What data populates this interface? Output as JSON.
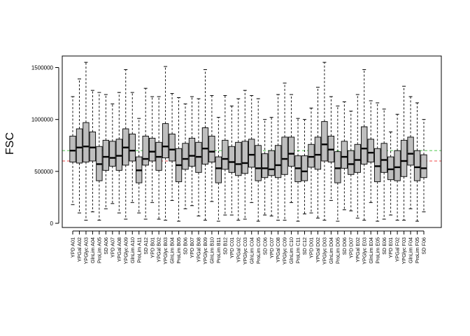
{
  "chart_data": {
    "type": "boxplot",
    "title": "",
    "xlabel": "",
    "ylabel": "FSC",
    "ylim": [
      0,
      1600000
    ],
    "yticks": [
      0,
      500000,
      1000000,
      1500000
    ],
    "ytick_labels": [
      "0",
      "500000",
      "1000000",
      "1500000"
    ],
    "grid": false,
    "box_color": "#bebebe",
    "reference_lines": [
      {
        "value": 700000,
        "color": "#4fc84f"
      },
      {
        "value": 600000,
        "color": "#ef4a4a"
      }
    ],
    "categories": [
      "YPD A01",
      "YPGal A02",
      "YPGlyc A03",
      "GlnLim A04",
      "ProLim A05",
      "SD A06",
      "YPD A07",
      "YPGal A08",
      "YPGlyc A09",
      "GlnLim A10",
      "ProLim A11",
      "SD A12",
      "YPD B01",
      "YPGal B02",
      "YPGlyc B03",
      "GlnLim B04",
      "ProLim B05",
      "SD B06",
      "YPD B07",
      "YPGal B08",
      "YPGlyc B09",
      "GlnLim B10",
      "ProLim B11",
      "SD B12",
      "YPD C01",
      "YPGal C02",
      "YPGlyc C03",
      "GlnLim C04",
      "ProLim C05",
      "SD C06",
      "YPD C07",
      "YPGal C08",
      "YPGlyc C09",
      "GlnLim C10",
      "ProLim C11",
      "SD C12",
      "YPD D01",
      "YPGal D02",
      "YPGlyc D03",
      "GlnLim D04",
      "ProLim D05",
      "SD D06",
      "YPD D07",
      "YPGal E02",
      "YPGlyc E03",
      "GlnLim E04",
      "ProLim E05",
      "SD E06",
      "YPD E01",
      "YPGal F02",
      "YPGlyc F03",
      "GlnLim F04",
      "ProLim F05",
      "SD F06"
    ],
    "boxes": [
      {
        "min": 180000,
        "q1": 590000,
        "median": 700000,
        "q3": 840000,
        "max": 1220000
      },
      {
        "min": 100000,
        "q1": 580000,
        "median": 730000,
        "q3": 910000,
        "max": 1390000
      },
      {
        "min": 30000,
        "q1": 590000,
        "median": 740000,
        "q3": 970000,
        "max": 1550000
      },
      {
        "min": 110000,
        "q1": 600000,
        "median": 730000,
        "q3": 880000,
        "max": 1280000
      },
      {
        "min": 30000,
        "q1": 410000,
        "median": 570000,
        "q3": 740000,
        "max": 1260000
      },
      {
        "min": 140000,
        "q1": 510000,
        "median": 640000,
        "q3": 800000,
        "max": 1240000
      },
      {
        "min": 190000,
        "q1": 550000,
        "median": 630000,
        "q3": 790000,
        "max": 1150000
      },
      {
        "min": 100000,
        "q1": 510000,
        "median": 650000,
        "q3": 810000,
        "max": 1260000
      },
      {
        "min": 40000,
        "q1": 560000,
        "median": 730000,
        "q3": 910000,
        "max": 1480000
      },
      {
        "min": 200000,
        "q1": 600000,
        "median": 700000,
        "q3": 860000,
        "max": 1260000
      },
      {
        "min": 100000,
        "q1": 390000,
        "median": 510000,
        "q3": 640000,
        "max": 1010000
      },
      {
        "min": 40000,
        "q1": 560000,
        "median": 620000,
        "q3": 840000,
        "max": 1300000
      },
      {
        "min": 200000,
        "q1": 600000,
        "median": 690000,
        "q3": 820000,
        "max": 1220000
      },
      {
        "min": 40000,
        "q1": 510000,
        "median": 640000,
        "q3": 780000,
        "max": 1220000
      },
      {
        "min": 30000,
        "q1": 630000,
        "median": 740000,
        "q3": 960000,
        "max": 1510000
      },
      {
        "min": 220000,
        "q1": 600000,
        "median": 710000,
        "q3": 860000,
        "max": 1250000
      },
      {
        "min": 20000,
        "q1": 400000,
        "median": 560000,
        "q3": 720000,
        "max": 1210000
      },
      {
        "min": 140000,
        "q1": 520000,
        "median": 620000,
        "q3": 770000,
        "max": 1150000
      },
      {
        "min": 170000,
        "q1": 550000,
        "median": 650000,
        "q3": 820000,
        "max": 1220000
      },
      {
        "min": 70000,
        "q1": 490000,
        "median": 640000,
        "q3": 780000,
        "max": 1200000
      },
      {
        "min": 30000,
        "q1": 570000,
        "median": 720000,
        "q3": 920000,
        "max": 1480000
      },
      {
        "min": 210000,
        "q1": 590000,
        "median": 690000,
        "q3": 840000,
        "max": 1230000
      },
      {
        "min": 20000,
        "q1": 390000,
        "median": 530000,
        "q3": 640000,
        "max": 1020000
      },
      {
        "min": 80000,
        "q1": 520000,
        "median": 620000,
        "q3": 800000,
        "max": 1230000
      },
      {
        "min": 80000,
        "q1": 490000,
        "median": 590000,
        "q3": 740000,
        "max": 1130000
      },
      {
        "min": 30000,
        "q1": 460000,
        "median": 570000,
        "q3": 780000,
        "max": 1200000
      },
      {
        "min": 40000,
        "q1": 480000,
        "median": 580000,
        "q3": 790000,
        "max": 1280000
      },
      {
        "min": 200000,
        "q1": 540000,
        "median": 660000,
        "q3": 810000,
        "max": 1230000
      },
      {
        "min": 20000,
        "q1": 410000,
        "median": 530000,
        "q3": 750000,
        "max": 1200000
      },
      {
        "min": 80000,
        "q1": 440000,
        "median": 530000,
        "q3": 670000,
        "max": 1000000
      },
      {
        "min": 70000,
        "q1": 460000,
        "median": 520000,
        "q3": 700000,
        "max": 1020000
      },
      {
        "min": 30000,
        "q1": 440000,
        "median": 560000,
        "q3": 750000,
        "max": 1240000
      },
      {
        "min": 30000,
        "q1": 470000,
        "median": 620000,
        "q3": 830000,
        "max": 1350000
      },
      {
        "min": 200000,
        "q1": 550000,
        "median": 670000,
        "q3": 830000,
        "max": 1240000
      },
      {
        "min": 20000,
        "q1": 400000,
        "median": 530000,
        "q3": 650000,
        "max": 1010000
      },
      {
        "min": 90000,
        "q1": 410000,
        "median": 500000,
        "q3": 650000,
        "max": 1000000
      },
      {
        "min": 100000,
        "q1": 540000,
        "median": 640000,
        "q3": 760000,
        "max": 1110000
      },
      {
        "min": 50000,
        "q1": 520000,
        "median": 660000,
        "q3": 830000,
        "max": 1310000
      },
      {
        "min": 30000,
        "q1": 600000,
        "median": 760000,
        "q3": 980000,
        "max": 1550000
      },
      {
        "min": 220000,
        "q1": 590000,
        "median": 710000,
        "q3": 840000,
        "max": 1220000
      },
      {
        "min": 20000,
        "q1": 390000,
        "median": 530000,
        "q3": 690000,
        "max": 1130000
      },
      {
        "min": 130000,
        "q1": 530000,
        "median": 640000,
        "q3": 790000,
        "max": 1170000
      },
      {
        "min": 120000,
        "q1": 470000,
        "median": 570000,
        "q3": 700000,
        "max": 1080000
      },
      {
        "min": 50000,
        "q1": 490000,
        "median": 610000,
        "q3": 760000,
        "max": 1240000
      },
      {
        "min": 30000,
        "q1": 570000,
        "median": 720000,
        "q3": 930000,
        "max": 1480000
      },
      {
        "min": 200000,
        "q1": 590000,
        "median": 680000,
        "q3": 810000,
        "max": 1180000
      },
      {
        "min": 20000,
        "q1": 400000,
        "median": 550000,
        "q3": 720000,
        "max": 1160000
      },
      {
        "min": 40000,
        "q1": 490000,
        "median": 610000,
        "q3": 770000,
        "max": 1100000
      },
      {
        "min": 80000,
        "q1": 420000,
        "median": 520000,
        "q3": 640000,
        "max": 880000
      },
      {
        "min": 30000,
        "q1": 410000,
        "median": 540000,
        "q3": 700000,
        "max": 1050000
      },
      {
        "min": 30000,
        "q1": 450000,
        "median": 600000,
        "q3": 800000,
        "max": 1320000
      },
      {
        "min": 140000,
        "q1": 560000,
        "median": 670000,
        "q3": 830000,
        "max": 1220000
      },
      {
        "min": 20000,
        "q1": 410000,
        "median": 540000,
        "q3": 700000,
        "max": 1160000
      },
      {
        "min": 110000,
        "q1": 440000,
        "median": 530000,
        "q3": 660000,
        "max": 1000000
      }
    ]
  }
}
